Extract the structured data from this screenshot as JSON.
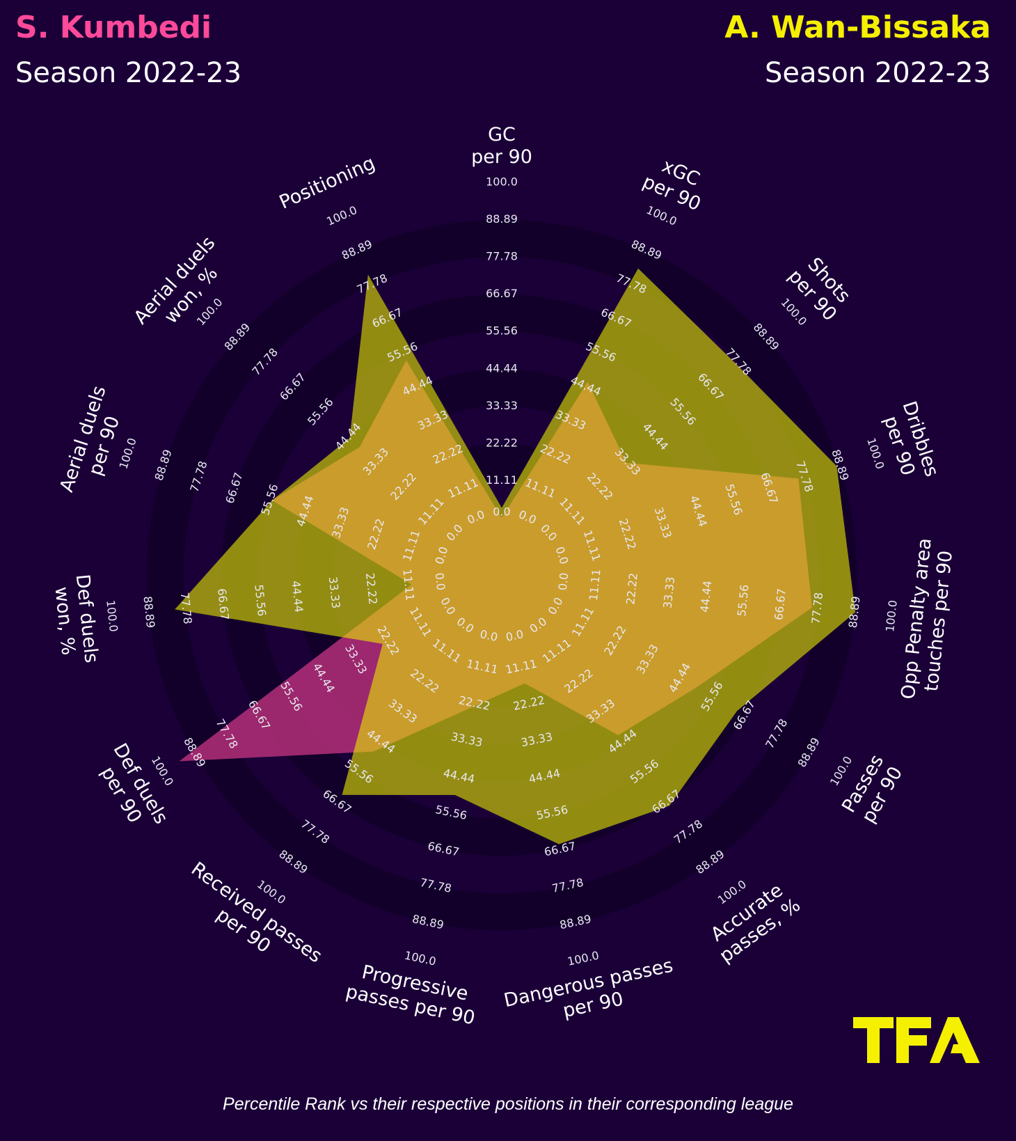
{
  "header": {
    "player1": {
      "name": "S. Kumbedi",
      "season": "Season 2022-23",
      "color": "#ff4a9a"
    },
    "player2": {
      "name": "A. Wan-Bissaka",
      "season": "Season 2022-23",
      "color": "#f5f000"
    }
  },
  "footer": "Percentile Rank vs their respective positions in their corresponding league",
  "logo": "TFA",
  "chart_data": {
    "type": "radar",
    "range": [
      0,
      100
    ],
    "ticks": [
      "0.0",
      "11.11",
      "22.22",
      "33.33",
      "44.44",
      "55.56",
      "66.67",
      "77.78",
      "88.89",
      "100.0"
    ],
    "params": [
      "GC\nper 90",
      "xGC\nper 90",
      "Shots\nper 90",
      "Dribbles\nper 90",
      "Opp Penalty area\ntouches per 90",
      "Passes\nper 90",
      "Accurate\npasses, %",
      "Dangerous passes\nper 90",
      "Progressive\npasses per 90",
      "Received passes\nper 90",
      "Def duels\nper 90",
      "Def duels\nwon, %",
      "Aerial duels\nper 90",
      "Aerial duels\nwon, %",
      "Positioning"
    ],
    "series": [
      {
        "name": "S. Kumbedi",
        "color": "#be327d",
        "values": [
          0,
          46,
          33,
          76,
          76,
          50,
          42,
          16,
          23,
          48,
          94,
          10,
          55,
          40,
          53
        ]
      },
      {
        "name": "A. Wan-Bissaka",
        "color": "#e8e900",
        "values": [
          3,
          83,
          77,
          88,
          89,
          64,
          68,
          65,
          50,
          64,
          24,
          81,
          55,
          44,
          81
        ]
      }
    ]
  }
}
